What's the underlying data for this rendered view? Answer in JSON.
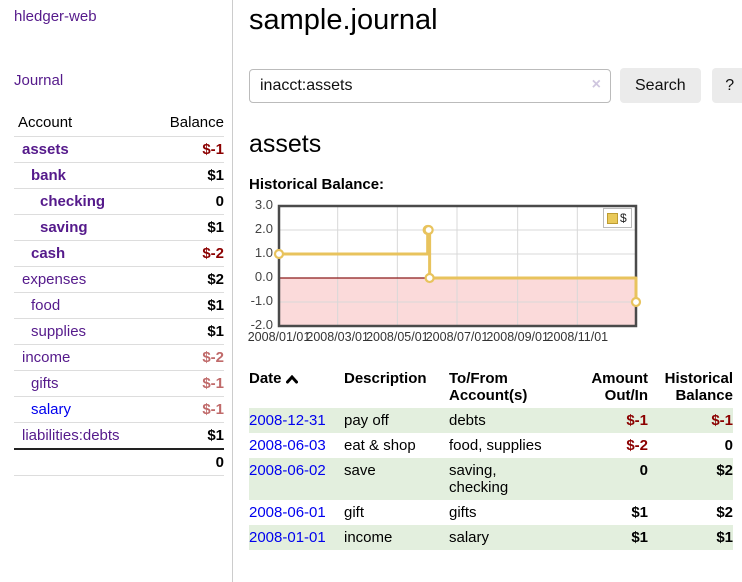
{
  "sidebar": {
    "app_title": "hledger-web",
    "journal_link": "Journal",
    "accounts_table": {
      "headers": {
        "account": "Account",
        "balance": "Balance"
      },
      "rows": [
        {
          "name": "assets",
          "balance": "$-1"
        },
        {
          "name": "bank",
          "balance": "$1"
        },
        {
          "name": "checking",
          "balance": "0"
        },
        {
          "name": "saving",
          "balance": "$1"
        },
        {
          "name": "cash",
          "balance": "$-2"
        },
        {
          "name": "expenses",
          "balance": "$2"
        },
        {
          "name": "food",
          "balance": "$1"
        },
        {
          "name": "supplies",
          "balance": "$1"
        },
        {
          "name": "income",
          "balance": "$-2"
        },
        {
          "name": "gifts",
          "balance": "$-1"
        },
        {
          "name": "salary",
          "balance": "$-1"
        },
        {
          "name": "liabilities:debts",
          "balance": "$1"
        }
      ],
      "total": "0"
    }
  },
  "header": {
    "title": "sample.journal"
  },
  "search": {
    "value": "inacct:assets",
    "clear_icon": "×",
    "search_button": "Search",
    "help_button": "?"
  },
  "account_page": {
    "title": "assets",
    "chart_caption": "Historical Balance:"
  },
  "chart_data": {
    "type": "line",
    "title": "Historical Balance:",
    "series": [
      {
        "name": "$",
        "step": true,
        "points": [
          [
            "2008-01-01",
            1
          ],
          [
            "2008-06-01",
            2
          ],
          [
            "2008-06-02",
            2
          ],
          [
            "2008-06-03",
            0
          ],
          [
            "2008-12-31",
            -1
          ]
        ]
      }
    ],
    "x_range": [
      "2008-01-01",
      "2008-12-31"
    ],
    "ylim": [
      -2,
      3
    ],
    "y_ticks": [
      {
        "v": 3,
        "label": "3.0"
      },
      {
        "v": 2,
        "label": "2.0"
      },
      {
        "v": 1,
        "label": "1.0"
      },
      {
        "v": 0,
        "label": "0.0"
      },
      {
        "v": -1,
        "label": "-1.0"
      },
      {
        "v": -2,
        "label": "-2.0"
      }
    ],
    "x_ticks": [
      {
        "date": "2008-01-01",
        "label": "2008/01/01"
      },
      {
        "date": "2008-03-01",
        "label": "2008/03/01"
      },
      {
        "date": "2008-05-01",
        "label": "2008/05/01"
      },
      {
        "date": "2008-07-01",
        "label": "2008/07/01"
      },
      {
        "date": "2008-09-01",
        "label": "2008/09/01"
      },
      {
        "date": "2008-11-01",
        "label": "2008/11/01"
      }
    ],
    "legend": {
      "position": "top-right",
      "entries": [
        "$"
      ]
    },
    "grid": true,
    "colors": {
      "line": "#e8c35d",
      "marker_fill": "#ffffff",
      "negative_region": "#fbdada",
      "zero_line": "#8b1a1a",
      "gridline": "#d8d8d8",
      "plot_border": "#4a4a4a"
    }
  },
  "transactions": {
    "headers": {
      "date": "Date",
      "description": "Description",
      "accounts": "To/From\nAccount(s)",
      "amount": "Amount\nOut/In",
      "balance": "Historical\nBalance"
    },
    "rows": [
      {
        "date": "2008-12-31",
        "description": "pay off",
        "accounts": "debts",
        "amount": "$-1",
        "balance": "$-1"
      },
      {
        "date": "2008-06-03",
        "description": "eat & shop",
        "accounts": "food, supplies",
        "amount": "$-2",
        "balance": "0"
      },
      {
        "date": "2008-06-02",
        "description": "save",
        "accounts": "saving,\nchecking",
        "amount": "0",
        "balance": "$2"
      },
      {
        "date": "2008-06-01",
        "description": "gift",
        "accounts": "gifts",
        "amount": "$1",
        "balance": "$2"
      },
      {
        "date": "2008-01-01",
        "description": "income",
        "accounts": "salary",
        "amount": "$1",
        "balance": "$1"
      }
    ]
  },
  "colors": {
    "link_visited_purple": "#551a8b",
    "link_blue": "#0000ee",
    "negative_strong": "#8b0000",
    "negative_soft": "#c06a6a",
    "row_stripe_green": "#e3efde"
  }
}
